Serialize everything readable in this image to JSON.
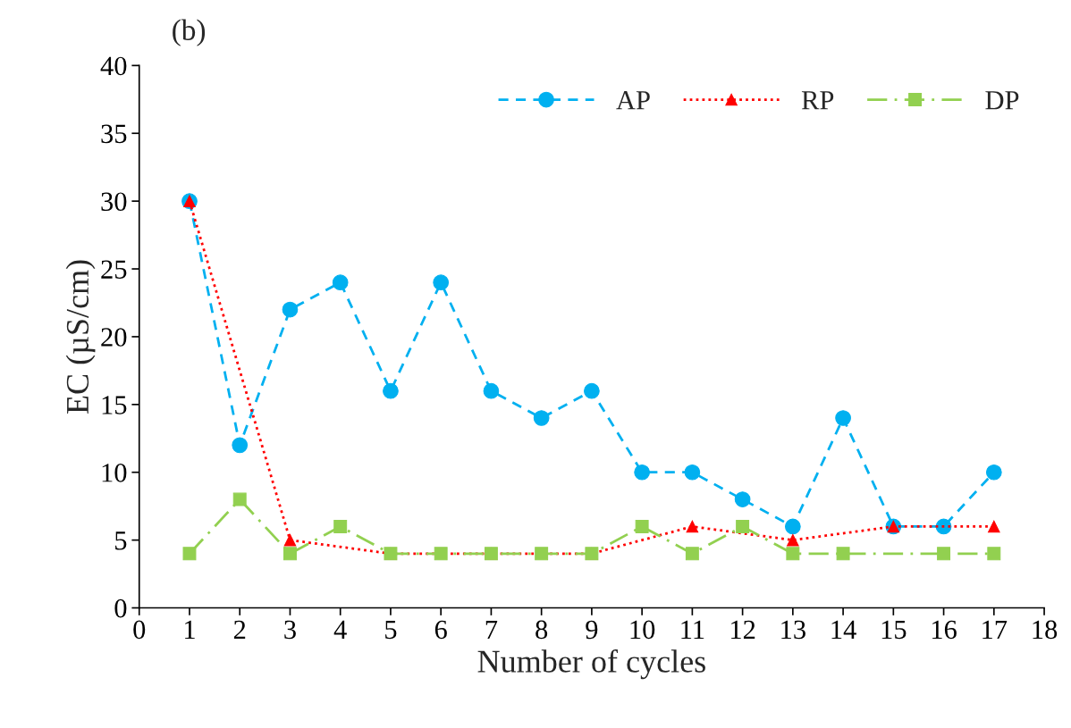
{
  "chart_data": {
    "type": "line",
    "title": "(b)",
    "xlabel": "Number of cycles",
    "ylabel": "EC (µS/cm)",
    "xlim": [
      0,
      18
    ],
    "xticks": [
      0,
      1,
      2,
      3,
      4,
      5,
      6,
      7,
      8,
      9,
      10,
      11,
      12,
      13,
      14,
      15,
      16,
      17,
      18
    ],
    "ylim": [
      0,
      40
    ],
    "yticks": [
      0,
      5,
      10,
      15,
      20,
      25,
      30,
      35,
      40
    ],
    "grid": false,
    "legend": "top right",
    "series": [
      {
        "name": "AP",
        "color": "#00b0f0",
        "marker": "circle",
        "line_style": "dashed",
        "x": [
          1,
          2,
          3,
          4,
          5,
          6,
          7,
          8,
          9,
          10,
          11,
          12,
          13,
          14,
          15,
          16,
          17
        ],
        "values": [
          30,
          12,
          22,
          24,
          16,
          24,
          16,
          14,
          16,
          10,
          10,
          8,
          6,
          14,
          6,
          6,
          10
        ]
      },
      {
        "name": "RP",
        "color": "#ff0000",
        "marker": "triangle",
        "line_style": "dotted",
        "x": [
          1,
          3,
          5,
          7,
          9,
          11,
          13,
          15,
          17
        ],
        "values": [
          30,
          5,
          4,
          4,
          4,
          6,
          5,
          6,
          6
        ]
      },
      {
        "name": "DP",
        "color": "#92d050",
        "marker": "square",
        "line_style": "dashdot",
        "x": [
          1,
          2,
          3,
          4,
          5,
          6,
          7,
          8,
          9,
          10,
          11,
          12,
          13,
          14,
          16,
          17
        ],
        "values": [
          4,
          8,
          4,
          6,
          4,
          4,
          4,
          4,
          4,
          6,
          4,
          6,
          4,
          4,
          4,
          4
        ]
      }
    ]
  }
}
